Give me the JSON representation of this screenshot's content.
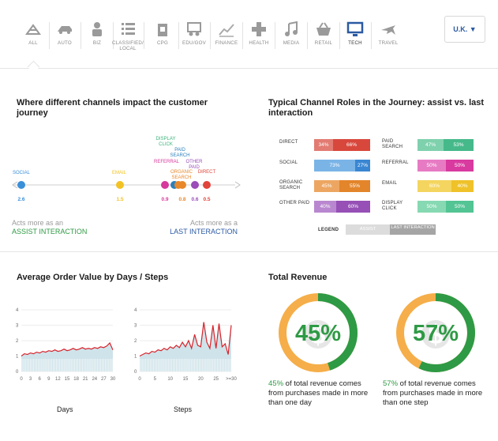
{
  "nav": {
    "items": [
      {
        "label": "ALL",
        "icon": "flower-icon"
      },
      {
        "label": "AUTO",
        "icon": "car-icon"
      },
      {
        "label": "BIZ",
        "icon": "person-icon"
      },
      {
        "label": "CLASSIFIED/ LOCAL",
        "icon": "list-icon"
      },
      {
        "label": "CPG",
        "icon": "package-icon"
      },
      {
        "label": "EDU/GOV",
        "icon": "people-icon"
      },
      {
        "label": "FINANCE",
        "icon": "chart-icon"
      },
      {
        "label": "HEALTH",
        "icon": "plus-icon"
      },
      {
        "label": "MEDIA",
        "icon": "music-icon"
      },
      {
        "label": "RETAIL",
        "icon": "basket-icon"
      },
      {
        "label": "TECH",
        "icon": "monitor-icon"
      },
      {
        "label": "TRAVEL",
        "icon": "plane-icon"
      }
    ],
    "country": "U.K. ▼"
  },
  "journey": {
    "title": "Where different channels impact the customer journey",
    "channels": [
      {
        "label": "SOCIAL",
        "value": "2.6",
        "color": "#3a8fd9"
      },
      {
        "label": "EMAIL",
        "value": "1.5",
        "color": "#f2c224"
      },
      {
        "label": "DISPLAY CLICK",
        "value": "",
        "color": "#39b37a"
      },
      {
        "label": "PAID SEARCH",
        "value": "",
        "color": "#2a7fbd"
      },
      {
        "label": "REFERRAL",
        "value": "0.9",
        "color": "#d6389c"
      },
      {
        "label": "ORGANIC SEARCH",
        "value": "0.8",
        "color": "#e8882a"
      },
      {
        "label": "OTHER PAID",
        "value": "0.6",
        "color": "#9a4cb8"
      },
      {
        "label": "DIRECT",
        "value": "0.5",
        "color": "#e0443b"
      }
    ],
    "assist_prefix": "Acts more as an",
    "assist_label": "ASSIST INTERACTION",
    "last_prefix": "Acts more as a",
    "last_label": "LAST INTERACTION"
  },
  "roles": {
    "title": "Typical Channel Roles in the Journey: assist vs. last interaction",
    "rows": [
      {
        "label": "DIRECT",
        "assist": 34,
        "last": 66,
        "a_color": "#e27b72",
        "l_color": "#d8473c"
      },
      {
        "label": "PAID SEARCH",
        "assist": 47,
        "last": 53,
        "a_color": "#7fd1ad",
        "l_color": "#46b98a"
      },
      {
        "label": "SOCIAL",
        "assist": 73,
        "last": 27,
        "a_color": "#7ab4e6",
        "l_color": "#3a86d2"
      },
      {
        "label": "REFERRAL",
        "assist": 50,
        "last": 50,
        "a_color": "#e77bc3",
        "l_color": "#d93a9f"
      },
      {
        "label": "ORGANIC SEARCH",
        "assist": 45,
        "last": 55,
        "a_color": "#eca662",
        "l_color": "#e3852a"
      },
      {
        "label": "EMAIL",
        "assist": 60,
        "last": 40,
        "a_color": "#f4d55f",
        "l_color": "#efc22a"
      },
      {
        "label": "OTHER PAID",
        "assist": 40,
        "last": 60,
        "a_color": "#b987cf",
        "l_color": "#9650b6"
      },
      {
        "label": "DISPLAY CLICK",
        "assist": 50,
        "last": 50,
        "a_color": "#86d9b2",
        "l_color": "#53c493"
      }
    ],
    "legend_label": "LEGEND",
    "legend_assist": "ASSIST",
    "legend_last": "LAST INTERACTION",
    "legend_assist_color": "#dcdcdc",
    "legend_last_color": "#a5a5a5"
  },
  "aov": {
    "title": "Average Order Value by Days / Steps"
  },
  "chart_data": [
    {
      "type": "area",
      "xlabel": "Days",
      "ylim": [
        0,
        4
      ],
      "yticks": [
        "0",
        "1",
        "2",
        "3",
        "4"
      ],
      "xticks": [
        "0",
        "3",
        "6",
        "9",
        "12",
        "15",
        "18",
        "21",
        "24",
        "27",
        "30"
      ],
      "x": [
        0,
        1,
        2,
        3,
        4,
        5,
        6,
        7,
        8,
        9,
        10,
        11,
        12,
        13,
        14,
        15,
        16,
        17,
        18,
        19,
        20,
        21,
        22,
        23,
        24,
        25,
        26,
        27,
        28,
        29,
        30
      ],
      "values": [
        1.0,
        1.15,
        1.1,
        1.2,
        1.15,
        1.25,
        1.2,
        1.3,
        1.25,
        1.35,
        1.3,
        1.4,
        1.3,
        1.35,
        1.45,
        1.35,
        1.4,
        1.5,
        1.4,
        1.45,
        1.55,
        1.45,
        1.5,
        1.45,
        1.55,
        1.5,
        1.6,
        1.55,
        1.65,
        1.85,
        1.4
      ],
      "line_color": "#d7232b",
      "fill_color": "#cfe3ea"
    },
    {
      "type": "area",
      "xlabel": "Steps",
      "ylim": [
        0,
        4
      ],
      "yticks": [
        "0",
        "1",
        "2",
        "3",
        "4"
      ],
      "xticks": [
        "0",
        "5",
        "10",
        "15",
        "20",
        "25",
        ">=30"
      ],
      "x": [
        0,
        1,
        2,
        3,
        4,
        5,
        6,
        7,
        8,
        9,
        10,
        11,
        12,
        13,
        14,
        15,
        16,
        17,
        18,
        19,
        20,
        21,
        22,
        23,
        24,
        25,
        26,
        27,
        28,
        29,
        30
      ],
      "values": [
        1.0,
        1.1,
        1.2,
        1.15,
        1.3,
        1.25,
        1.4,
        1.35,
        1.5,
        1.4,
        1.6,
        1.5,
        1.7,
        1.55,
        1.9,
        1.6,
        2.0,
        1.5,
        2.4,
        1.7,
        1.6,
        3.2,
        1.9,
        1.5,
        3.0,
        1.5,
        3.1,
        1.6,
        1.8,
        1.1,
        3.0
      ],
      "line_color": "#d7232b",
      "fill_color": "#cfe3ea"
    }
  ],
  "revenue": {
    "title": "Total Revenue",
    "donuts": [
      {
        "value": 45,
        "label": "45%",
        "cap_pct": "45%",
        "caption": " of total revenue comes from purchases made in more than one day"
      },
      {
        "value": 57,
        "label": "57%",
        "cap_pct": "57%",
        "caption": " of total revenue comes from purchases made in more than one step"
      }
    ],
    "green": "#2e9a45",
    "orange": "#f5ae49"
  }
}
